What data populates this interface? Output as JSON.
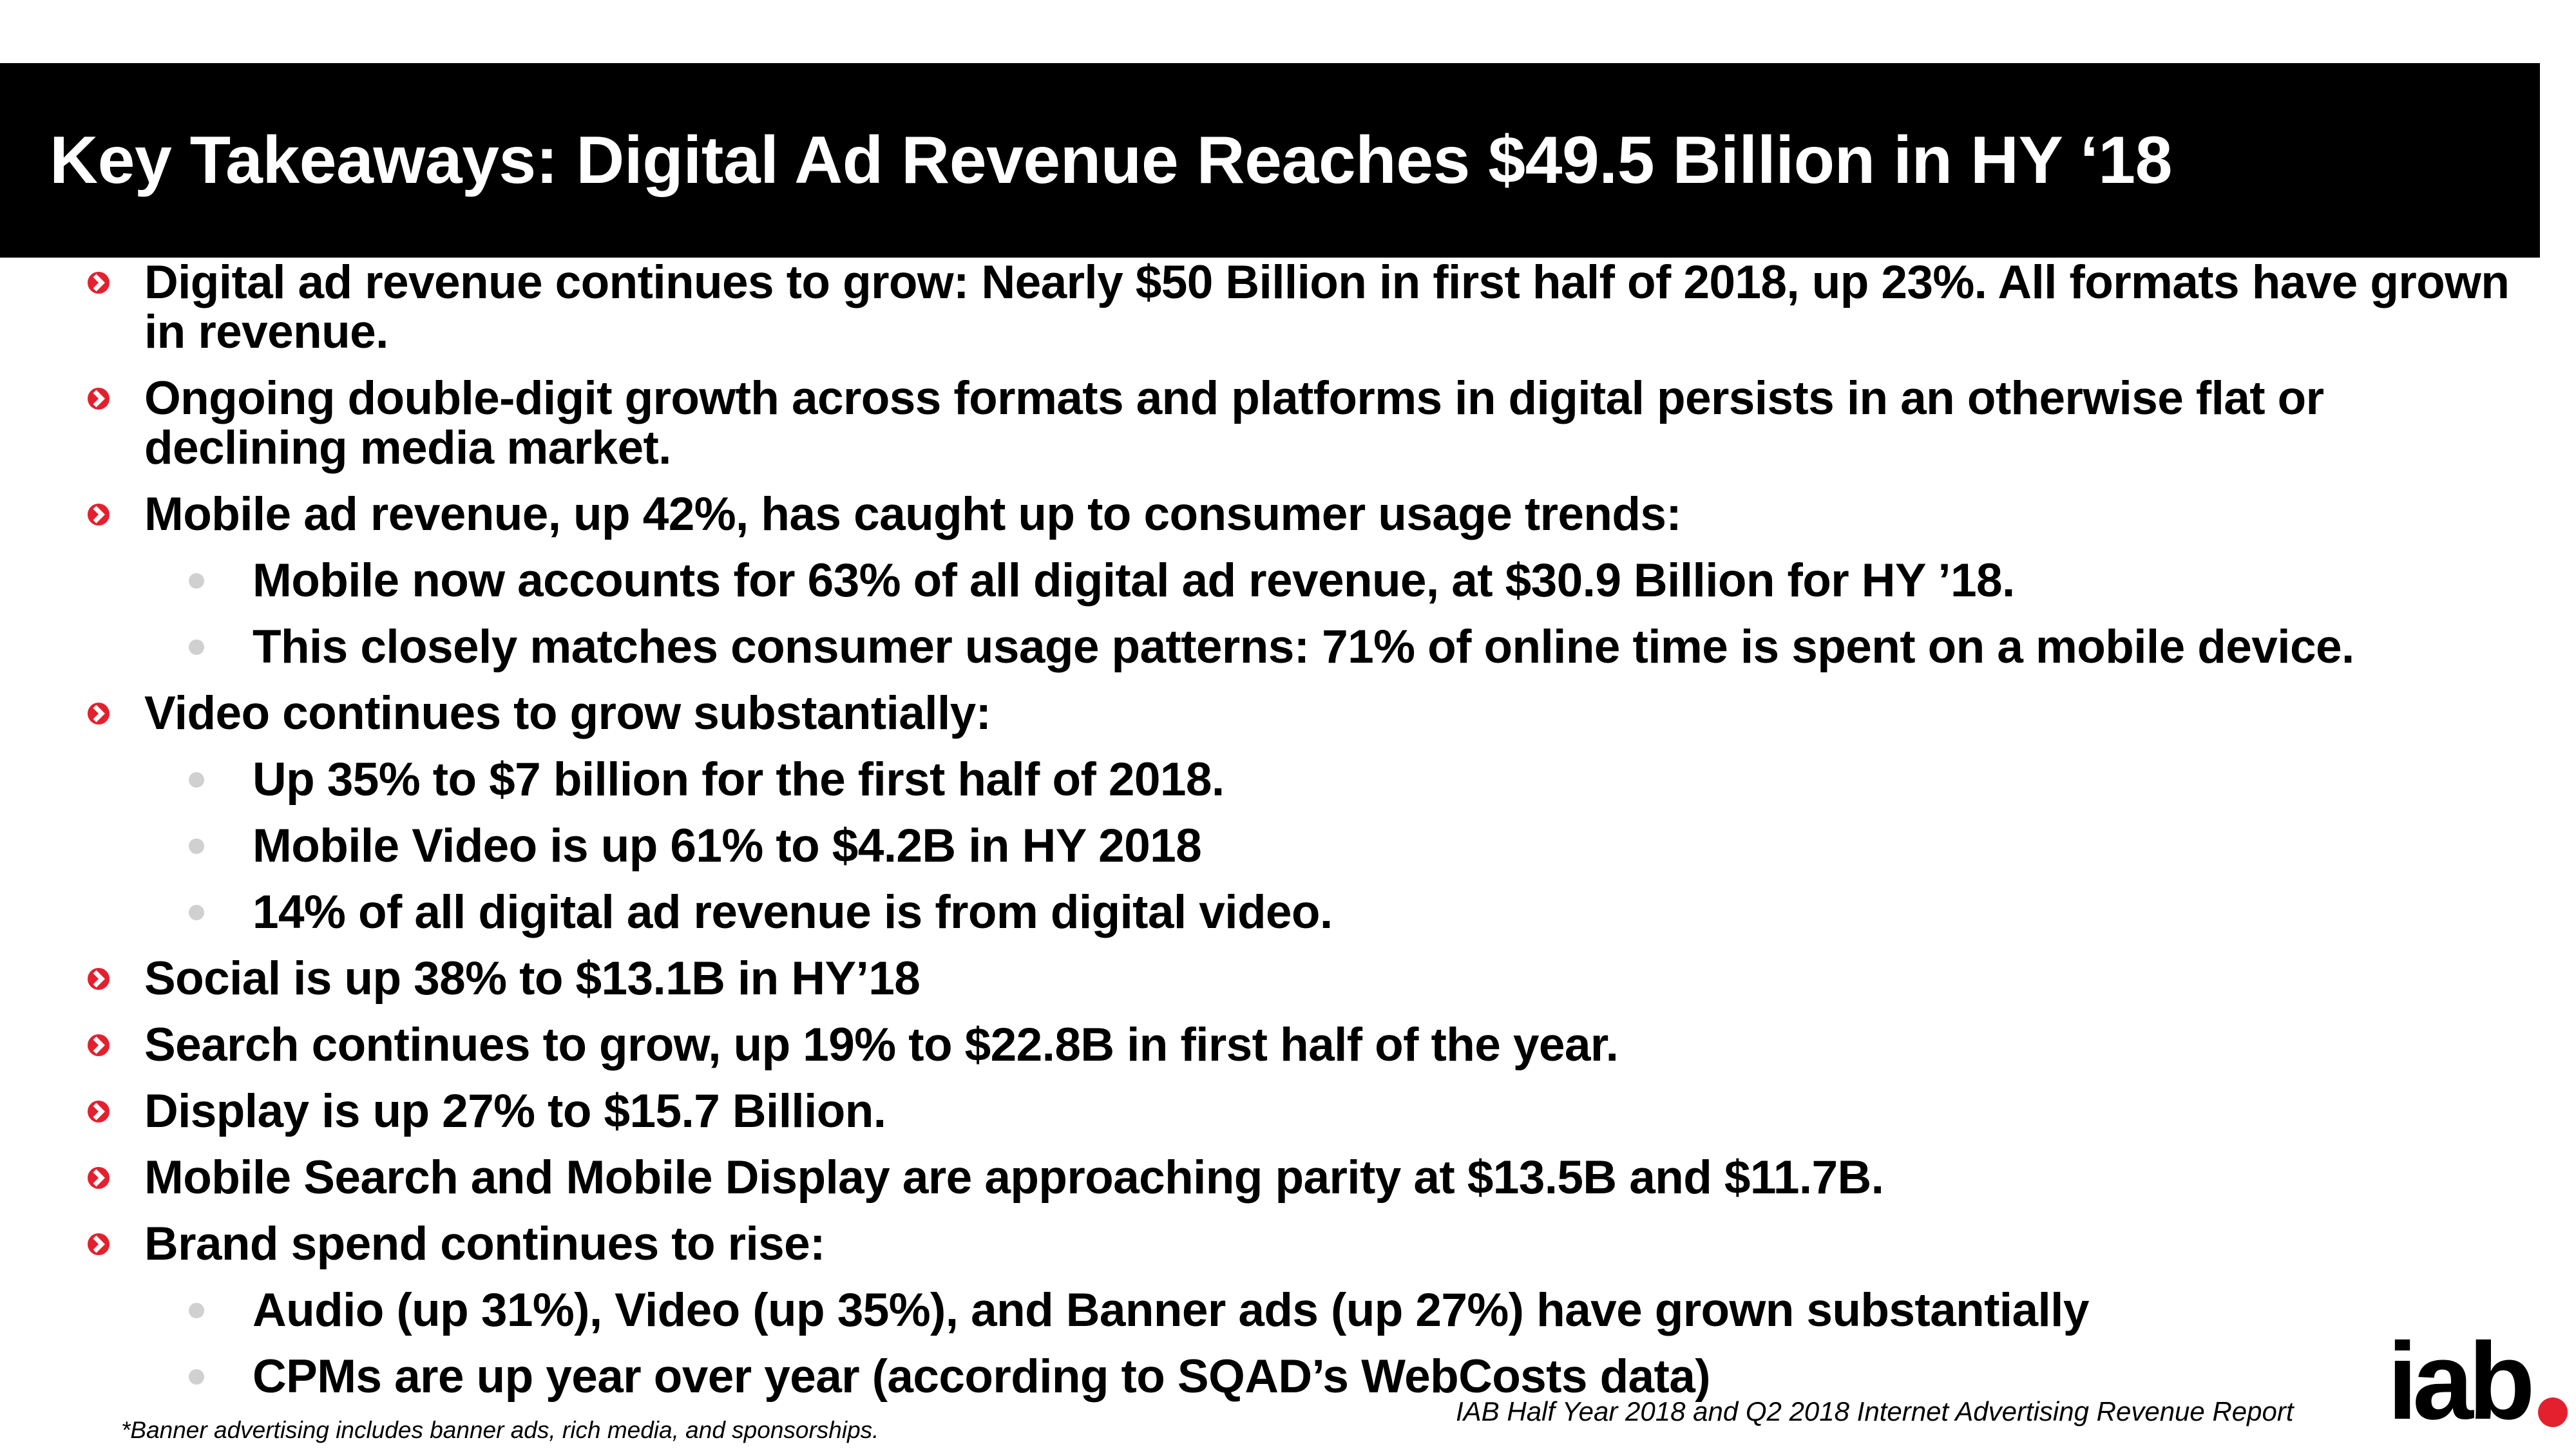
{
  "header": {
    "title": "Key Takeaways:  Digital Ad Revenue Reaches $49.5 Billion in HY ‘18"
  },
  "bullets": [
    {
      "level": 1,
      "text": "Digital ad revenue continues to grow:  Nearly $50 Billion in first half of 2018, up 23%.  All formats have grown in revenue."
    },
    {
      "level": 1,
      "text": "Ongoing double-digit growth across formats and platforms in digital persists in an otherwise flat or declining media market."
    },
    {
      "level": 1,
      "text": "Mobile ad revenue, up 42%, has caught up to consumer usage trends:"
    },
    {
      "level": 2,
      "text": "Mobile now accounts for 63% of all digital ad revenue, at $30.9 Billion for HY ’18."
    },
    {
      "level": 2,
      "text": "This closely matches consumer usage patterns:  71% of online time is spent on a mobile device."
    },
    {
      "level": 1,
      "text": "Video continues to grow substantially:"
    },
    {
      "level": 2,
      "text": "Up 35% to $7 billion for the first half of 2018."
    },
    {
      "level": 2,
      "text": "Mobile Video is up 61% to $4.2B in HY 2018"
    },
    {
      "level": 2,
      "text": "14% of all digital ad revenue is from digital video."
    },
    {
      "level": 1,
      "text": "Social is up 38% to $13.1B in HY’18"
    },
    {
      "level": 1,
      "text": "Search continues to grow, up 19% to $22.8B in first half of the year."
    },
    {
      "level": 1,
      "text": "Display is up 27% to $15.7 Billion."
    },
    {
      "level": 1,
      "text": "Mobile Search and Mobile Display are approaching parity at $13.5B and $11.7B."
    },
    {
      "level": 1,
      "text": "Brand spend continues to rise:"
    },
    {
      "level": 2,
      "text": "Audio (up 31%), Video (up 35%), and Banner ads (up 27%) have grown substantially"
    },
    {
      "level": 2,
      "text": "CPMs are up year over year (according to SQAD’s WebCosts data)"
    }
  ],
  "footnote": "*Banner advertising includes banner ads, rich media, and sponsorships.",
  "source": "IAB Half Year 2018 and Q2 2018 Internet Advertising Revenue Report",
  "logo": "iab"
}
